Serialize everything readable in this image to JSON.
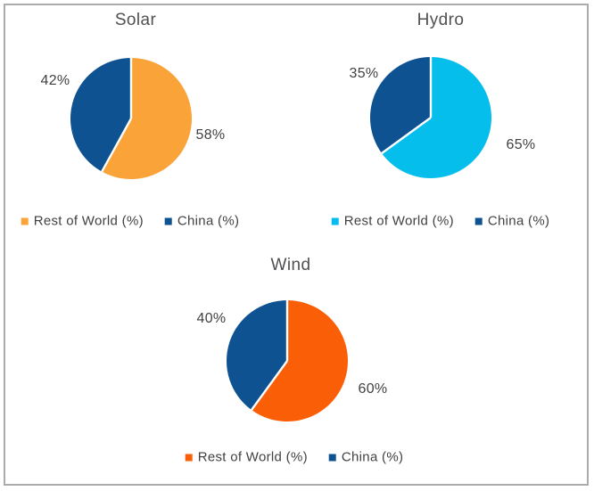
{
  "frame": {
    "border_color": "#ababab",
    "background": "#ffffff"
  },
  "chart_data": [
    {
      "type": "pie",
      "title": "Solar",
      "categories": [
        "Rest of World (%)",
        "China (%)"
      ],
      "values": [
        58,
        42
      ],
      "labels": [
        "58%",
        "42%"
      ],
      "colors": [
        "#FAA339",
        "#0E5291"
      ],
      "start_angle_deg": 0,
      "direction": "clockwise",
      "legend_position": "bottom"
    },
    {
      "type": "pie",
      "title": "Hydro",
      "categories": [
        "Rest of World (%)",
        "China (%)"
      ],
      "values": [
        65,
        35
      ],
      "labels": [
        "65%",
        "35%"
      ],
      "colors": [
        "#06BEEC",
        "#0E5291"
      ],
      "start_angle_deg": 0,
      "direction": "clockwise",
      "legend_position": "bottom"
    },
    {
      "type": "pie",
      "title": "Wind",
      "categories": [
        "Rest of World (%)",
        "China (%)"
      ],
      "values": [
        60,
        40
      ],
      "labels": [
        "60%",
        "40%"
      ],
      "colors": [
        "#FA5E07",
        "#0E5291"
      ],
      "start_angle_deg": 0,
      "direction": "clockwise",
      "legend_position": "bottom"
    }
  ]
}
